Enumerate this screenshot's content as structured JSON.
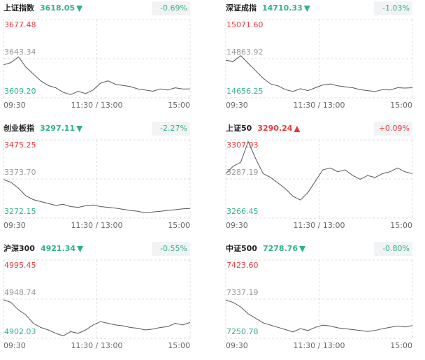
{
  "chart_data": [
    {
      "type": "line",
      "title": "上证指数",
      "price": 3618.05,
      "change": "-0.69%",
      "direction": "down",
      "ylim": [
        3609.2,
        3677.48
      ],
      "yticks": [
        {
          "value": 3609.2,
          "label": "3609.20"
        },
        {
          "value": 3643.34,
          "label": "3643.34"
        },
        {
          "value": 3677.48,
          "label": "3677.48"
        }
      ],
      "xlabels": [
        "09:30",
        "11:30 / 13:00",
        "15:00"
      ],
      "color": "#555555",
      "values": [
        3638,
        3640,
        3645,
        3636,
        3630,
        3624,
        3620,
        3618,
        3614,
        3612,
        3615,
        3613,
        3616,
        3622,
        3624,
        3621,
        3620,
        3619,
        3617,
        3616,
        3615,
        3617,
        3616,
        3618,
        3617,
        3617
      ]
    },
    {
      "type": "line",
      "title": "深证成指",
      "price": 14710.33,
      "change": "-1.03%",
      "direction": "down",
      "ylim": [
        14656.25,
        15071.6
      ],
      "yticks": [
        {
          "value": 14656.25,
          "label": "14656.25"
        },
        {
          "value": 14863.92,
          "label": "14863.92"
        },
        {
          "value": 15071.6,
          "label": "15071.60"
        }
      ],
      "xlabels": [
        "09:30",
        "11:30 / 13:00",
        "15:00"
      ],
      "color": "#555555",
      "values": [
        14855,
        14850,
        14880,
        14840,
        14800,
        14760,
        14730,
        14720,
        14700,
        14690,
        14705,
        14695,
        14710,
        14725,
        14730,
        14720,
        14715,
        14710,
        14700,
        14695,
        14690,
        14700,
        14698,
        14710,
        14708,
        14710
      ]
    },
    {
      "type": "line",
      "title": "创业板指",
      "price": 3297.11,
      "change": "-2.27%",
      "direction": "down",
      "ylim": [
        3272.15,
        3475.25
      ],
      "yticks": [
        {
          "value": 3272.15,
          "label": "3272.15"
        },
        {
          "value": 3373.7,
          "label": "3373.70"
        },
        {
          "value": 3475.25,
          "label": "3475.25"
        }
      ],
      "xlabels": [
        "09:30",
        "11:30 / 13:00",
        "15:00"
      ],
      "color": "#555555",
      "values": [
        3372,
        3365,
        3350,
        3330,
        3320,
        3315,
        3310,
        3305,
        3308,
        3302,
        3300,
        3304,
        3306,
        3302,
        3300,
        3298,
        3295,
        3292,
        3290,
        3286,
        3288,
        3290,
        3292,
        3294,
        3296,
        3297
      ]
    },
    {
      "type": "line",
      "title": "上证50",
      "price": 3290.24,
      "change": "+0.09%",
      "direction": "up",
      "ylim": [
        3266.45,
        3307.93
      ],
      "yticks": [
        {
          "value": 3266.45,
          "label": "3266.45"
        },
        {
          "value": 3287.19,
          "label": "3287.19"
        },
        {
          "value": 3307.93,
          "label": "3307.93"
        }
      ],
      "xlabels": [
        "09:30",
        "11:30 / 13:00",
        "15:00"
      ],
      "color": "#555555",
      "values": [
        3290,
        3294,
        3296,
        3307,
        3298,
        3290,
        3288,
        3285,
        3282,
        3278,
        3276,
        3280,
        3286,
        3292,
        3293,
        3291,
        3292,
        3289,
        3287,
        3289,
        3288,
        3290,
        3291,
        3293,
        3291,
        3290
      ]
    },
    {
      "type": "line",
      "title": "沪深300",
      "price": 4921.34,
      "change": "-0.55%",
      "direction": "down",
      "ylim": [
        4902.03,
        4995.45
      ],
      "yticks": [
        {
          "value": 4902.03,
          "label": "4902.03"
        },
        {
          "value": 4948.74,
          "label": "4948.74"
        },
        {
          "value": 4995.45,
          "label": "4995.45"
        }
      ],
      "xlabels": [
        "09:30",
        "11:30 / 13:00",
        "15:00"
      ],
      "color": "#555555",
      "values": [
        4948,
        4945,
        4936,
        4930,
        4920,
        4915,
        4912,
        4908,
        4905,
        4910,
        4908,
        4912,
        4918,
        4922,
        4920,
        4918,
        4917,
        4915,
        4914,
        4912,
        4913,
        4915,
        4916,
        4920,
        4918,
        4921
      ]
    },
    {
      "type": "line",
      "title": "中证500",
      "price": 7278.76,
      "change": "-0.80%",
      "direction": "down",
      "ylim": [
        7250.78,
        7423.6
      ],
      "yticks": [
        {
          "value": 7250.78,
          "label": "7250.78"
        },
        {
          "value": 7337.19,
          "label": "7337.19"
        },
        {
          "value": 7423.6,
          "label": "7423.60"
        }
      ],
      "xlabels": [
        "09:30",
        "11:30 / 13:00",
        "15:00"
      ],
      "color": "#555555",
      "values": [
        7335,
        7330,
        7320,
        7305,
        7295,
        7285,
        7280,
        7275,
        7270,
        7265,
        7272,
        7268,
        7275,
        7280,
        7278,
        7274,
        7272,
        7270,
        7268,
        7266,
        7268,
        7272,
        7275,
        7278,
        7276,
        7279
      ]
    }
  ]
}
